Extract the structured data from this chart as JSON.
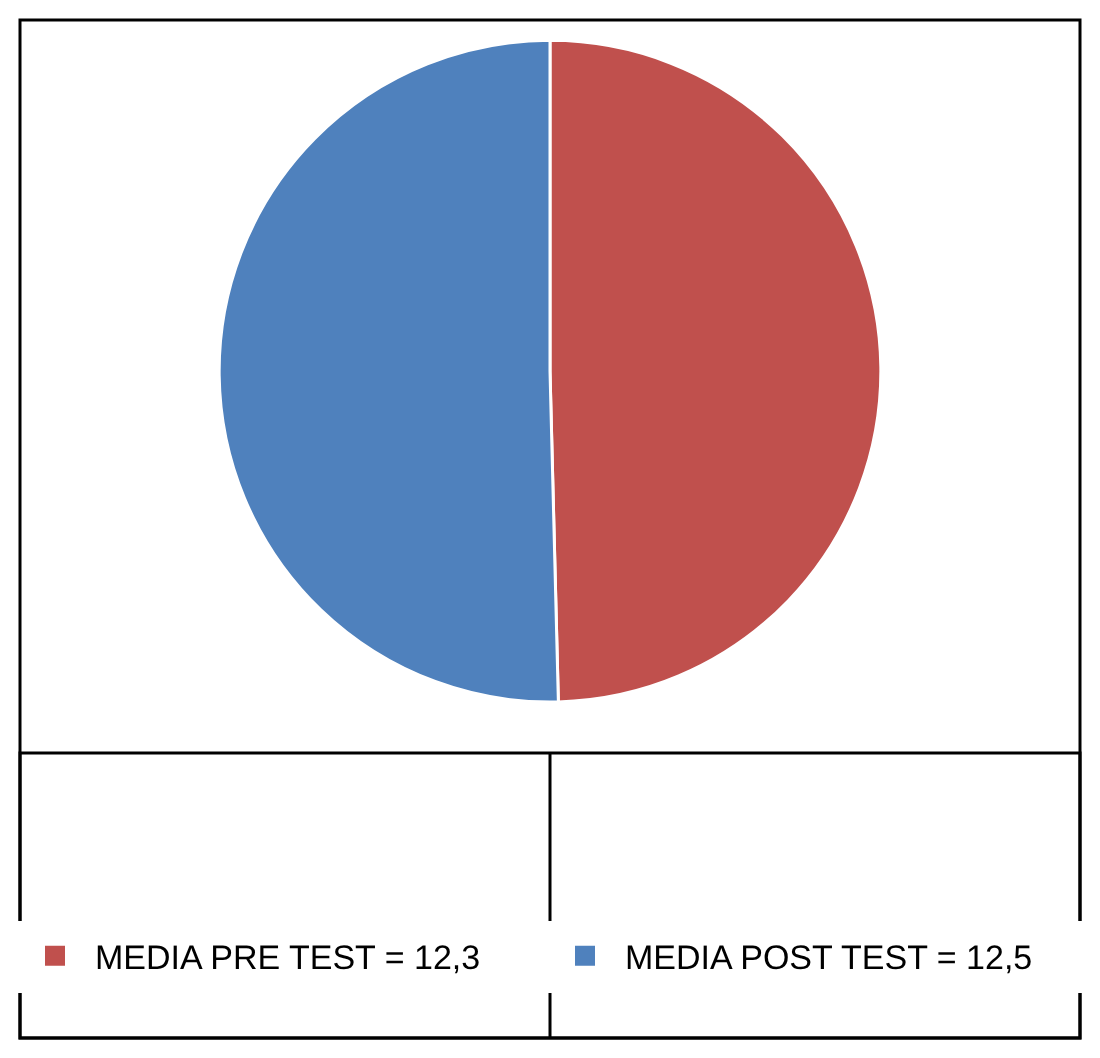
{
  "chart_data": {
    "type": "pie",
    "categories": [
      "MEDIA PRE TEST = 12,3",
      "MEDIA POST TEST = 12,5"
    ],
    "values": [
      12.3,
      12.5
    ],
    "colors": [
      "#c0504d",
      "#4f81bd"
    ],
    "legend": "bottom"
  }
}
